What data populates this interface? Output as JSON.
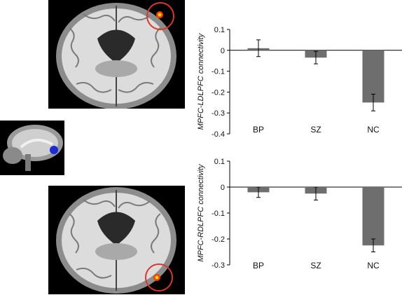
{
  "chart_data": [
    {
      "type": "bar",
      "categories": [
        "BP",
        "SZ",
        "NC"
      ],
      "values": [
        0.01,
        -0.035,
        -0.25
      ],
      "errors": [
        0.04,
        0.03,
        0.04
      ],
      "ylabel": "MPFC-LDLPFC connectivity",
      "ylim": [
        -0.4,
        0.1
      ],
      "yticks": [
        0.1,
        0,
        -0.1,
        -0.2,
        -0.3,
        -0.4
      ],
      "ytick_labels": [
        "0.1",
        "0",
        "-0.1",
        "-0.2",
        "-0.3",
        "-0.4"
      ],
      "bar_color": "#6e6e6e"
    },
    {
      "type": "bar",
      "categories": [
        "BP",
        "SZ",
        "NC"
      ],
      "values": [
        -0.02,
        -0.025,
        -0.225
      ],
      "errors": [
        0.02,
        0.025,
        0.025
      ],
      "ylabel": "MPFC-RDLPFC connectivity",
      "ylim": [
        -0.3,
        0.1
      ],
      "yticks": [
        0.1,
        0,
        -0.1,
        -0.2,
        -0.3
      ],
      "ytick_labels": [
        "0.1",
        "0",
        "-0.1",
        "-0.2",
        "-0.3"
      ],
      "bar_color": "#6e6e6e"
    }
  ],
  "colors": {
    "highlight_circle": "#d9372b",
    "activation": "#ffb400",
    "seed_marker": "#1d2bd6"
  }
}
